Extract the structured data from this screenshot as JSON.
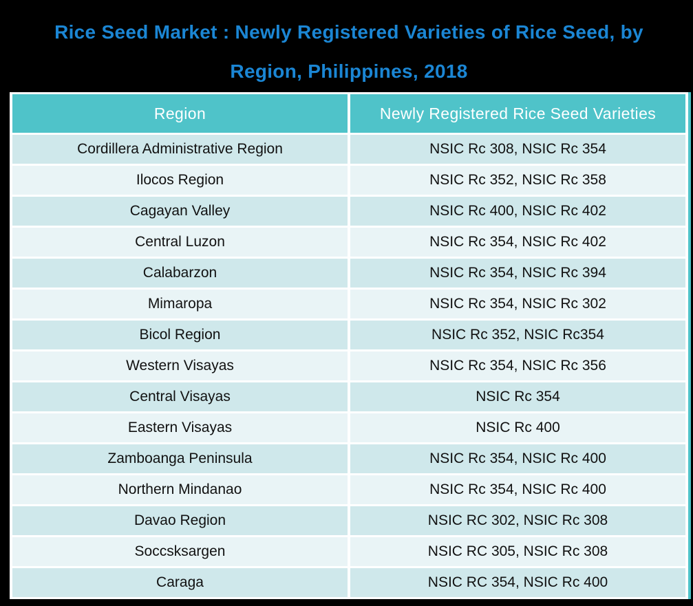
{
  "title": {
    "line1": "Rice Seed Market : Newly Registered Varieties of Rice Seed, by",
    "line2": "Region, Philippines, 2018"
  },
  "table": {
    "columns": [
      "Region",
      "Newly Registered Rice Seed Varieties"
    ],
    "rows": [
      {
        "region": "Cordillera Administrative Region",
        "varieties": "NSIC Rc 308, NSIC Rc 354"
      },
      {
        "region": "Ilocos Region",
        "varieties": "NSIC Rc 352, NSIC Rc 358"
      },
      {
        "region": "Cagayan Valley",
        "varieties": "NSIC Rc 400, NSIC Rc 402"
      },
      {
        "region": "Central Luzon",
        "varieties": "NSIC Rc 354, NSIC Rc 402"
      },
      {
        "region": "Calabarzon",
        "varieties": "NSIC Rc 354, NSIC Rc 394"
      },
      {
        "region": "Mimaropa",
        "varieties": "NSIC Rc 354, NSIC Rc 302"
      },
      {
        "region": "Bicol Region",
        "varieties": "NSIC Rc 352, NSIC Rc354"
      },
      {
        "region": "Western Visayas",
        "varieties": "NSIC Rc 354, NSIC Rc 356"
      },
      {
        "region": "Central Visayas",
        "varieties": "NSIC Rc 354"
      },
      {
        "region": "Eastern Visayas",
        "varieties": "NSIC Rc 400"
      },
      {
        "region": "Zamboanga Peninsula",
        "varieties": "NSIC Rc 354, NSIC Rc 400"
      },
      {
        "region": "Northern Mindanao",
        "varieties": "NSIC Rc 354, NSIC Rc 400"
      },
      {
        "region": "Davao Region",
        "varieties": "NSIC RC 302, NSIC Rc 308"
      },
      {
        "region": "Soccsksargen",
        "varieties": "NSIC RC 305, NSIC Rc 308"
      },
      {
        "region": "Caraga",
        "varieties": "NSIC RC 354, NSIC Rc 400"
      }
    ]
  },
  "colors": {
    "background": "#000000",
    "title_blue": "#1b86d4",
    "header_teal": "#4fc3c9",
    "row_dark": "#cfe8eb",
    "row_light": "#e9f4f6",
    "cell_text": "#111111",
    "header_text": "#ffffff",
    "separator": "#ffffff"
  },
  "chart_data": {
    "type": "table",
    "title": "Rice Seed Market : Newly Registered Varieties of Rice Seed, by Region, Philippines, 2018",
    "columns": [
      "Region",
      "Newly Registered Rice Seed Varieties"
    ],
    "rows": [
      [
        "Cordillera Administrative Region",
        "NSIC Rc 308, NSIC Rc 354"
      ],
      [
        "Ilocos Region",
        "NSIC Rc 352, NSIC Rc 358"
      ],
      [
        "Cagayan Valley",
        "NSIC Rc 400, NSIC Rc 402"
      ],
      [
        "Central Luzon",
        "NSIC Rc 354, NSIC Rc 402"
      ],
      [
        "Calabarzon",
        "NSIC Rc 354, NSIC Rc 394"
      ],
      [
        "Mimaropa",
        "NSIC Rc 354, NSIC Rc 302"
      ],
      [
        "Bicol Region",
        "NSIC Rc 352, NSIC Rc354"
      ],
      [
        "Western Visayas",
        "NSIC Rc 354, NSIC Rc 356"
      ],
      [
        "Central Visayas",
        "NSIC Rc 354"
      ],
      [
        "Eastern Visayas",
        "NSIC Rc 400"
      ],
      [
        "Zamboanga Peninsula",
        "NSIC Rc 354, NSIC Rc 400"
      ],
      [
        "Northern Mindanao",
        "NSIC Rc 354, NSIC Rc 400"
      ],
      [
        "Davao Region",
        "NSIC RC 302, NSIC Rc 308"
      ],
      [
        "Soccsksargen",
        "NSIC RC 305, NSIC Rc 308"
      ],
      [
        "Caraga",
        "NSIC RC 354, NSIC Rc 400"
      ]
    ],
    "layout": {
      "header_background": "#4fc3c9",
      "alternating_rows": true,
      "grid": "white separators"
    }
  }
}
